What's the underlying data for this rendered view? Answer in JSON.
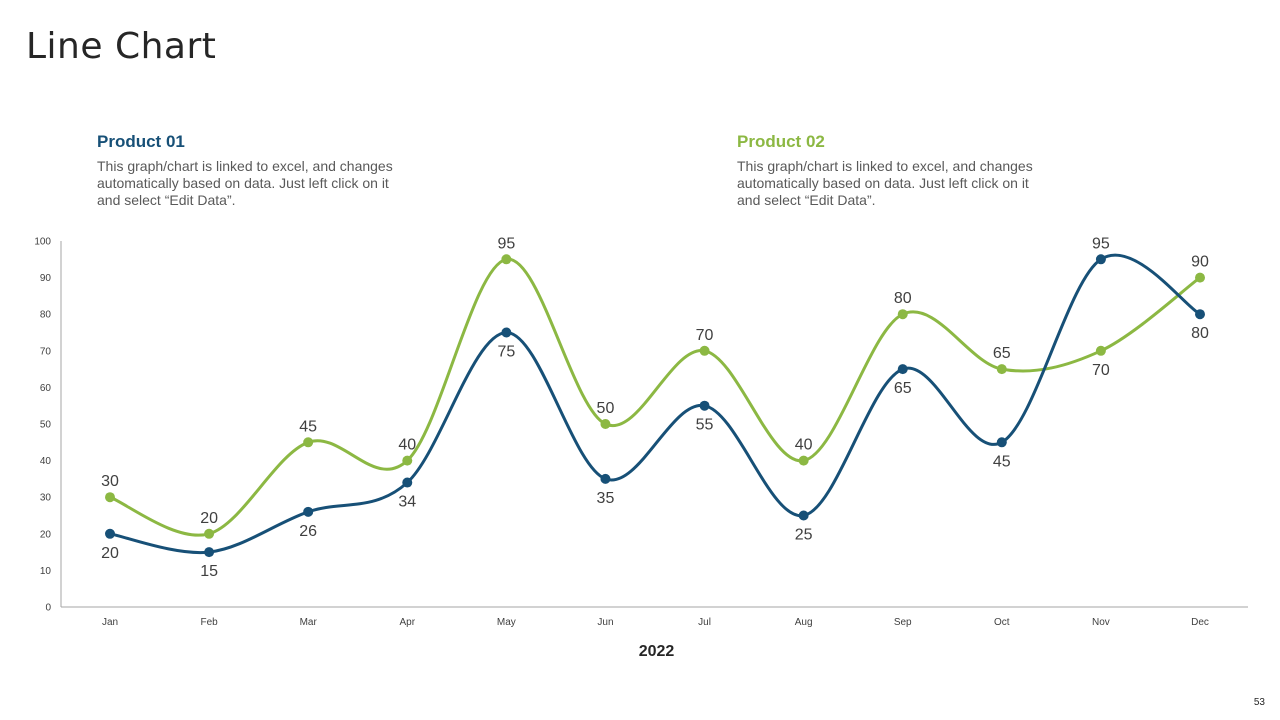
{
  "slide": {
    "title": "Line Chart",
    "page_number": "53"
  },
  "legend": [
    {
      "title": "Product 01",
      "description": "This graph/chart is linked to excel, and changes automatically based on data. Just left click on it and select “Edit Data”."
    },
    {
      "title": "Product 02",
      "description": "This graph/chart is linked to excel, and changes automatically based on data. Just left click on it and select “Edit Data”."
    }
  ],
  "colors": {
    "product01": "#175077",
    "product02": "#8cb843",
    "axis": "#a6a6a6",
    "text": "#404040"
  },
  "chart_data": {
    "type": "line",
    "smooth": true,
    "categories": [
      "Jan",
      "Feb",
      "Mar",
      "Apr",
      "May",
      "Jun",
      "Jul",
      "Aug",
      "Sep",
      "Oct",
      "Nov",
      "Dec"
    ],
    "series": [
      {
        "name": "Product 01",
        "values": [
          20,
          15,
          26,
          34,
          75,
          35,
          55,
          25,
          65,
          45,
          95,
          80
        ]
      },
      {
        "name": "Product 02",
        "values": [
          30,
          20,
          45,
          40,
          95,
          50,
          70,
          40,
          80,
          65,
          70,
          90
        ]
      }
    ],
    "xlabel": "2022",
    "ylabel": "",
    "ylim": [
      0,
      100
    ],
    "yticks": [
      0,
      10,
      20,
      30,
      40,
      50,
      60,
      70,
      80,
      90,
      100
    ],
    "grid": false
  }
}
